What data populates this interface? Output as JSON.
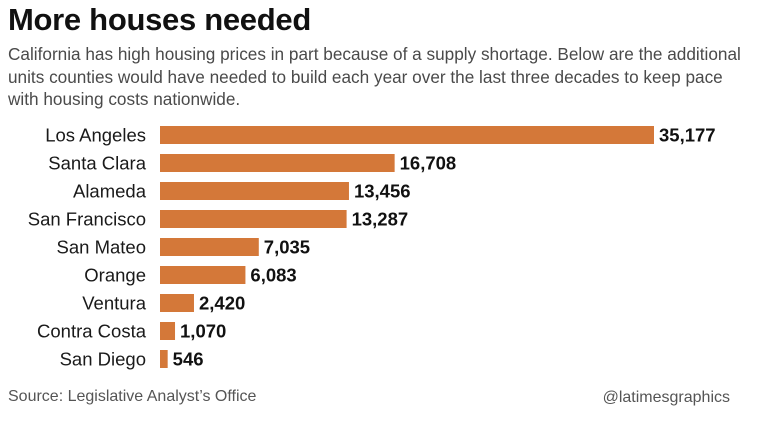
{
  "chart_data": {
    "type": "bar",
    "orientation": "horizontal",
    "title": "More houses needed",
    "subtitle": "California has high housing prices in part because of a supply shortage. Below are the additional units counties would have needed to build each year over the last three decades to keep pace with housing costs nationwide.",
    "categories": [
      "Los Angeles",
      "Santa Clara",
      "Alameda",
      "San Francisco",
      "San Mateo",
      "Orange",
      "Ventura",
      "Contra Costa",
      "San Diego"
    ],
    "values": [
      35177,
      16708,
      13456,
      13287,
      7035,
      6083,
      2420,
      1070,
      546
    ],
    "value_labels": [
      "35,177",
      "16,708",
      "13,456",
      "13,287",
      "7,035",
      "6,083",
      "2,420",
      "1,070",
      "546"
    ],
    "xlabel": "",
    "ylabel": "",
    "xlim": [
      0,
      35177
    ],
    "grid": false,
    "bar_color": "#d47839"
  },
  "footer": {
    "source": "Source: Legislative Analyst’s Office",
    "credit": "@latimesgraphics"
  }
}
